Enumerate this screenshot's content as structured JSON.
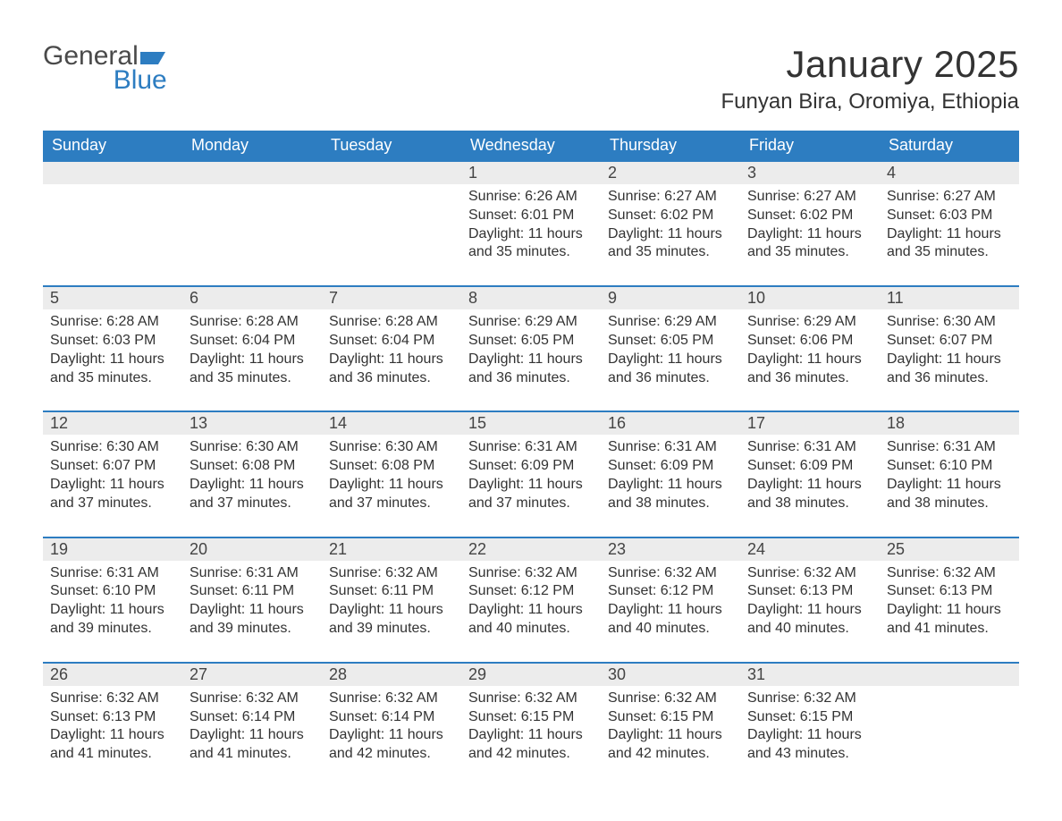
{
  "logo": {
    "general": "General",
    "blue": "Blue"
  },
  "title": "January 2025",
  "location": "Funyan Bira, Oromiya, Ethiopia",
  "colors": {
    "header_bg": "#2d7dc1",
    "header_text": "#ffffff",
    "daynum_bg": "#ececec",
    "row_border": "#2d7dc1",
    "text": "#333333",
    "logo_gray": "#4a4a4a",
    "logo_blue": "#2d7dc1",
    "background": "#ffffff"
  },
  "day_names": [
    "Sunday",
    "Monday",
    "Tuesday",
    "Wednesday",
    "Thursday",
    "Friday",
    "Saturday"
  ],
  "weeks": [
    [
      {
        "n": "",
        "sunrise": "",
        "sunset": "",
        "daylight": ""
      },
      {
        "n": "",
        "sunrise": "",
        "sunset": "",
        "daylight": ""
      },
      {
        "n": "",
        "sunrise": "",
        "sunset": "",
        "daylight": ""
      },
      {
        "n": "1",
        "sunrise": "Sunrise: 6:26 AM",
        "sunset": "Sunset: 6:01 PM",
        "daylight": "Daylight: 11 hours and 35 minutes."
      },
      {
        "n": "2",
        "sunrise": "Sunrise: 6:27 AM",
        "sunset": "Sunset: 6:02 PM",
        "daylight": "Daylight: 11 hours and 35 minutes."
      },
      {
        "n": "3",
        "sunrise": "Sunrise: 6:27 AM",
        "sunset": "Sunset: 6:02 PM",
        "daylight": "Daylight: 11 hours and 35 minutes."
      },
      {
        "n": "4",
        "sunrise": "Sunrise: 6:27 AM",
        "sunset": "Sunset: 6:03 PM",
        "daylight": "Daylight: 11 hours and 35 minutes."
      }
    ],
    [
      {
        "n": "5",
        "sunrise": "Sunrise: 6:28 AM",
        "sunset": "Sunset: 6:03 PM",
        "daylight": "Daylight: 11 hours and 35 minutes."
      },
      {
        "n": "6",
        "sunrise": "Sunrise: 6:28 AM",
        "sunset": "Sunset: 6:04 PM",
        "daylight": "Daylight: 11 hours and 35 minutes."
      },
      {
        "n": "7",
        "sunrise": "Sunrise: 6:28 AM",
        "sunset": "Sunset: 6:04 PM",
        "daylight": "Daylight: 11 hours and 36 minutes."
      },
      {
        "n": "8",
        "sunrise": "Sunrise: 6:29 AM",
        "sunset": "Sunset: 6:05 PM",
        "daylight": "Daylight: 11 hours and 36 minutes."
      },
      {
        "n": "9",
        "sunrise": "Sunrise: 6:29 AM",
        "sunset": "Sunset: 6:05 PM",
        "daylight": "Daylight: 11 hours and 36 minutes."
      },
      {
        "n": "10",
        "sunrise": "Sunrise: 6:29 AM",
        "sunset": "Sunset: 6:06 PM",
        "daylight": "Daylight: 11 hours and 36 minutes."
      },
      {
        "n": "11",
        "sunrise": "Sunrise: 6:30 AM",
        "sunset": "Sunset: 6:07 PM",
        "daylight": "Daylight: 11 hours and 36 minutes."
      }
    ],
    [
      {
        "n": "12",
        "sunrise": "Sunrise: 6:30 AM",
        "sunset": "Sunset: 6:07 PM",
        "daylight": "Daylight: 11 hours and 37 minutes."
      },
      {
        "n": "13",
        "sunrise": "Sunrise: 6:30 AM",
        "sunset": "Sunset: 6:08 PM",
        "daylight": "Daylight: 11 hours and 37 minutes."
      },
      {
        "n": "14",
        "sunrise": "Sunrise: 6:30 AM",
        "sunset": "Sunset: 6:08 PM",
        "daylight": "Daylight: 11 hours and 37 minutes."
      },
      {
        "n": "15",
        "sunrise": "Sunrise: 6:31 AM",
        "sunset": "Sunset: 6:09 PM",
        "daylight": "Daylight: 11 hours and 37 minutes."
      },
      {
        "n": "16",
        "sunrise": "Sunrise: 6:31 AM",
        "sunset": "Sunset: 6:09 PM",
        "daylight": "Daylight: 11 hours and 38 minutes."
      },
      {
        "n": "17",
        "sunrise": "Sunrise: 6:31 AM",
        "sunset": "Sunset: 6:09 PM",
        "daylight": "Daylight: 11 hours and 38 minutes."
      },
      {
        "n": "18",
        "sunrise": "Sunrise: 6:31 AM",
        "sunset": "Sunset: 6:10 PM",
        "daylight": "Daylight: 11 hours and 38 minutes."
      }
    ],
    [
      {
        "n": "19",
        "sunrise": "Sunrise: 6:31 AM",
        "sunset": "Sunset: 6:10 PM",
        "daylight": "Daylight: 11 hours and 39 minutes."
      },
      {
        "n": "20",
        "sunrise": "Sunrise: 6:31 AM",
        "sunset": "Sunset: 6:11 PM",
        "daylight": "Daylight: 11 hours and 39 minutes."
      },
      {
        "n": "21",
        "sunrise": "Sunrise: 6:32 AM",
        "sunset": "Sunset: 6:11 PM",
        "daylight": "Daylight: 11 hours and 39 minutes."
      },
      {
        "n": "22",
        "sunrise": "Sunrise: 6:32 AM",
        "sunset": "Sunset: 6:12 PM",
        "daylight": "Daylight: 11 hours and 40 minutes."
      },
      {
        "n": "23",
        "sunrise": "Sunrise: 6:32 AM",
        "sunset": "Sunset: 6:12 PM",
        "daylight": "Daylight: 11 hours and 40 minutes."
      },
      {
        "n": "24",
        "sunrise": "Sunrise: 6:32 AM",
        "sunset": "Sunset: 6:13 PM",
        "daylight": "Daylight: 11 hours and 40 minutes."
      },
      {
        "n": "25",
        "sunrise": "Sunrise: 6:32 AM",
        "sunset": "Sunset: 6:13 PM",
        "daylight": "Daylight: 11 hours and 41 minutes."
      }
    ],
    [
      {
        "n": "26",
        "sunrise": "Sunrise: 6:32 AM",
        "sunset": "Sunset: 6:13 PM",
        "daylight": "Daylight: 11 hours and 41 minutes."
      },
      {
        "n": "27",
        "sunrise": "Sunrise: 6:32 AM",
        "sunset": "Sunset: 6:14 PM",
        "daylight": "Daylight: 11 hours and 41 minutes."
      },
      {
        "n": "28",
        "sunrise": "Sunrise: 6:32 AM",
        "sunset": "Sunset: 6:14 PM",
        "daylight": "Daylight: 11 hours and 42 minutes."
      },
      {
        "n": "29",
        "sunrise": "Sunrise: 6:32 AM",
        "sunset": "Sunset: 6:15 PM",
        "daylight": "Daylight: 11 hours and 42 minutes."
      },
      {
        "n": "30",
        "sunrise": "Sunrise: 6:32 AM",
        "sunset": "Sunset: 6:15 PM",
        "daylight": "Daylight: 11 hours and 42 minutes."
      },
      {
        "n": "31",
        "sunrise": "Sunrise: 6:32 AM",
        "sunset": "Sunset: 6:15 PM",
        "daylight": "Daylight: 11 hours and 43 minutes."
      },
      {
        "n": "",
        "sunrise": "",
        "sunset": "",
        "daylight": ""
      }
    ]
  ]
}
